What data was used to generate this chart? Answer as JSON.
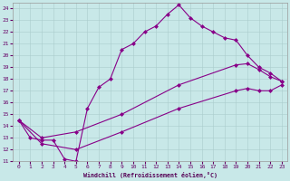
{
  "xlabel": "Windchill (Refroidissement éolien,°C)",
  "background_color": "#c8e8e8",
  "line_color": "#880088",
  "grid_color": "#aacccc",
  "xlim": [
    -0.5,
    23.5
  ],
  "ylim": [
    11,
    24.5
  ],
  "xticks": [
    0,
    1,
    2,
    3,
    4,
    5,
    6,
    7,
    8,
    9,
    10,
    11,
    12,
    13,
    14,
    15,
    16,
    17,
    18,
    19,
    20,
    21,
    22,
    23
  ],
  "yticks": [
    11,
    12,
    13,
    14,
    15,
    16,
    17,
    18,
    19,
    20,
    21,
    22,
    23,
    24
  ],
  "series1_x": [
    0,
    1,
    2,
    3,
    4,
    5,
    6,
    7,
    8,
    9,
    10,
    11,
    12,
    13,
    14,
    15,
    16,
    17,
    18,
    19,
    20,
    21,
    22,
    23
  ],
  "series1_y": [
    14.5,
    13.0,
    12.8,
    12.8,
    11.2,
    11.0,
    15.5,
    17.3,
    18.0,
    20.5,
    21.0,
    22.0,
    22.5,
    23.5,
    24.3,
    23.2,
    22.5,
    22.0,
    21.5,
    21.3,
    20.0,
    19.0,
    18.5,
    17.8
  ],
  "series2_x": [
    0,
    2,
    5,
    9,
    14,
    19,
    20,
    21,
    22,
    23
  ],
  "series2_y": [
    14.5,
    13.0,
    13.5,
    15.0,
    17.5,
    19.2,
    19.3,
    18.8,
    18.2,
    17.8
  ],
  "series3_x": [
    0,
    2,
    5,
    9,
    14,
    19,
    20,
    21,
    22,
    23
  ],
  "series3_y": [
    14.5,
    12.5,
    12.0,
    13.5,
    15.5,
    17.0,
    17.2,
    17.0,
    17.0,
    17.5
  ],
  "marker": "D",
  "markersize": 2.5,
  "linewidth": 0.8
}
